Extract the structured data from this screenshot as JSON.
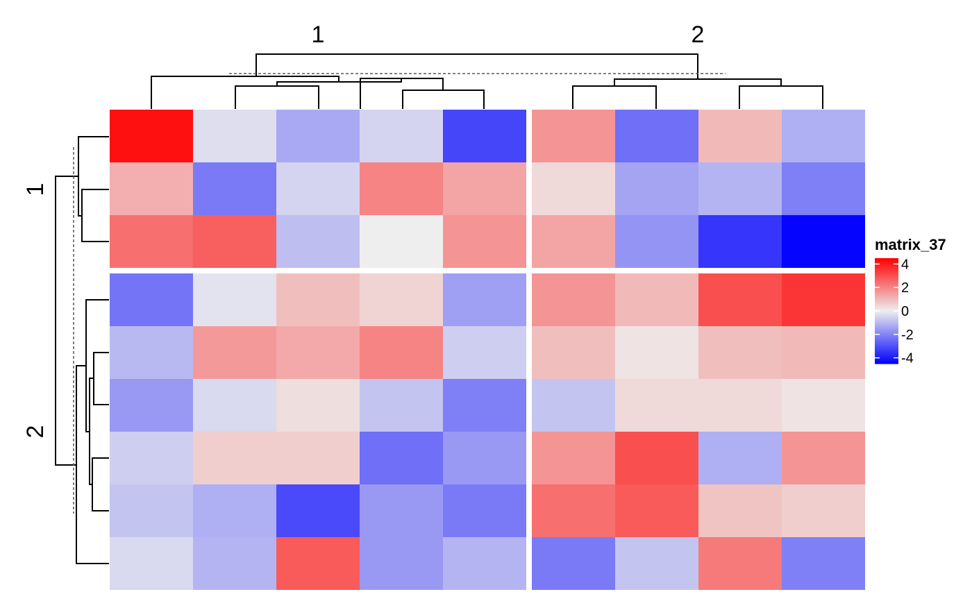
{
  "chart_data": {
    "type": "heatmap",
    "title": "",
    "xlabel": "",
    "ylabel": "",
    "column_split_labels": [
      "1",
      "2"
    ],
    "row_split_labels": [
      "1",
      "2"
    ],
    "column_split_sizes": [
      5,
      4
    ],
    "row_split_sizes": [
      3,
      6
    ],
    "grid": false,
    "legend": {
      "title": "matrix_37",
      "placement": "right",
      "ticks": [
        "4",
        "2",
        "0",
        "-2",
        "-4"
      ],
      "tick_values": [
        4,
        2,
        0,
        -2,
        -4
      ],
      "range": [
        -4.5,
        4.5
      ],
      "colors": {
        "low": "#0000ff",
        "mid": "#eeeeee",
        "high": "#ff0000"
      }
    },
    "values": [
      [
        4.2,
        -0.3,
        -1.3,
        -0.5,
        -3.2,
        1.7,
        -2.4,
        1.0,
        -1.2
      ],
      [
        1.2,
        -2.2,
        -0.5,
        2.0,
        1.4,
        0.4,
        -1.4,
        -1.1,
        -2.1
      ],
      [
        2.4,
        2.7,
        -0.9,
        0.0,
        1.7,
        1.4,
        -1.7,
        -3.5,
        -4.4
      ],
      [
        -2.3,
        -0.2,
        0.9,
        0.5,
        -1.5,
        1.7,
        1.0,
        3.0,
        3.5
      ],
      [
        -1.0,
        1.6,
        1.3,
        2.0,
        -0.6,
        0.9,
        0.2,
        0.9,
        1.0
      ],
      [
        -1.6,
        -0.4,
        0.3,
        -0.8,
        -2.1,
        -0.8,
        0.4,
        0.4,
        0.2
      ],
      [
        -0.6,
        0.6,
        0.6,
        -2.4,
        -1.6,
        1.7,
        3.0,
        -1.2,
        1.7
      ],
      [
        -0.8,
        -1.2,
        -3.1,
        -1.6,
        -2.2,
        2.4,
        2.8,
        0.8,
        0.6
      ],
      [
        -0.4,
        -1.1,
        2.8,
        -1.6,
        -1.1,
        -2.2,
        -0.8,
        2.2,
        -2.1
      ]
    ]
  }
}
